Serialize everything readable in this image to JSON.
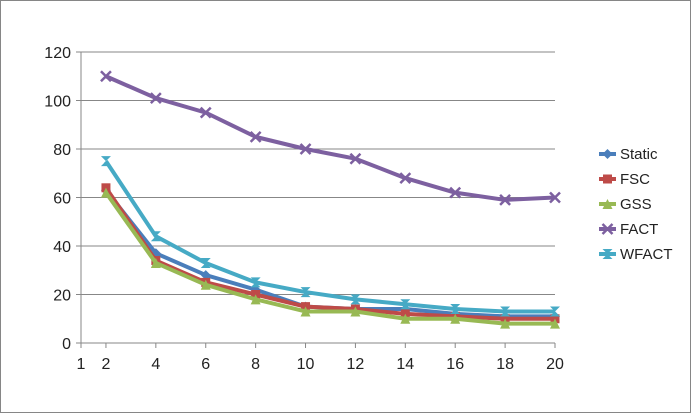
{
  "chart_data": {
    "type": "line",
    "title": "",
    "xlabel": "",
    "ylabel": "",
    "x": [
      2,
      4,
      6,
      8,
      10,
      12,
      14,
      16,
      18,
      20
    ],
    "x_ticks": [
      1,
      2,
      4,
      6,
      8,
      10,
      12,
      14,
      16,
      18,
      20
    ],
    "y_ticks": [
      0,
      20,
      40,
      60,
      80,
      100,
      120
    ],
    "ylim": [
      0,
      120
    ],
    "grid": "horizontal",
    "legend_position": "right",
    "series": [
      {
        "name": "Static",
        "color": "#4a7ebb",
        "marker": "diamond",
        "values": [
          63,
          37,
          28,
          22,
          15,
          14,
          14,
          12,
          11,
          11
        ]
      },
      {
        "name": "FSC",
        "color": "#be4b48",
        "marker": "square",
        "values": [
          64,
          34,
          25,
          20,
          15,
          14,
          12,
          11,
          10,
          10
        ]
      },
      {
        "name": "GSS",
        "color": "#98b954",
        "marker": "triangle",
        "values": [
          62,
          33,
          24,
          18,
          13,
          13,
          10,
          10,
          8,
          8
        ]
      },
      {
        "name": "FACT",
        "color": "#7d60a0",
        "marker": "x",
        "values": [
          110,
          101,
          95,
          85,
          80,
          76,
          68,
          62,
          59,
          60
        ]
      },
      {
        "name": "WFACT",
        "color": "#46aac5",
        "marker": "hourglass",
        "values": [
          75,
          44,
          33,
          25,
          21,
          18,
          16,
          14,
          13,
          13
        ]
      }
    ]
  }
}
